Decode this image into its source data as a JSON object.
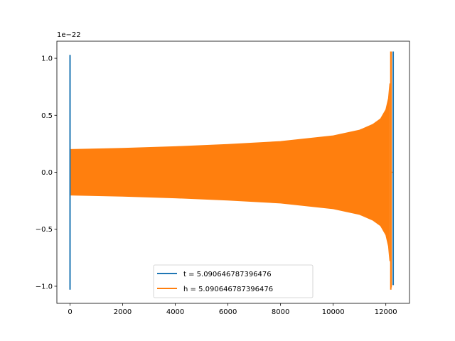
{
  "chart_data": {
    "type": "line",
    "title": "",
    "xlabel": "",
    "ylabel": "",
    "y_offset_label": "1e−22",
    "xlim": [
      -500,
      12900
    ],
    "ylim": [
      -1.15,
      1.15
    ],
    "x_ticks": [
      0,
      2000,
      4000,
      6000,
      8000,
      10000,
      12000
    ],
    "x_tick_labels": [
      "0",
      "2000",
      "4000",
      "6000",
      "8000",
      "10000",
      "12000"
    ],
    "y_ticks": [
      -1.0,
      -0.5,
      0.0,
      0.5,
      1.0
    ],
    "y_tick_labels": [
      "−1.0",
      "−0.5",
      "0.0",
      "0.5",
      "1.0"
    ],
    "grid": false,
    "legend_position": "lower-center",
    "series": [
      {
        "name": "t = 5.090646787396476",
        "color": "#1f77b4",
        "spikes": [
          {
            "x": 0,
            "ymin": -1.03,
            "ymax": 1.03
          },
          {
            "x": 12280,
            "ymin": -0.99,
            "ymax": 1.06
          }
        ]
      },
      {
        "name": "h = 5.090646787396476",
        "color": "#ff7f0e",
        "envelope": [
          {
            "x": 0,
            "amp": 0.2
          },
          {
            "x": 2000,
            "amp": 0.21
          },
          {
            "x": 4000,
            "amp": 0.225
          },
          {
            "x": 6000,
            "amp": 0.245
          },
          {
            "x": 8000,
            "amp": 0.27
          },
          {
            "x": 10000,
            "amp": 0.32
          },
          {
            "x": 11000,
            "amp": 0.37
          },
          {
            "x": 11500,
            "amp": 0.42
          },
          {
            "x": 11800,
            "amp": 0.47
          },
          {
            "x": 12000,
            "amp": 0.55
          },
          {
            "x": 12100,
            "amp": 0.65
          },
          {
            "x": 12150,
            "amp": 0.78
          }
        ],
        "peak": {
          "x": 12190,
          "ymin": -1.03,
          "ymax": 1.06
        }
      }
    ]
  }
}
